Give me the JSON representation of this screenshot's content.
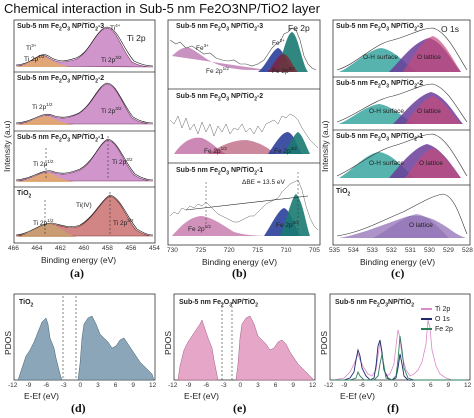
{
  "heading": "Chemical interaction in Sub-5 nm Fe2O3NP/TiO2 layer",
  "panels_top": [
    {
      "id": "a",
      "letter": "(a)",
      "core_level": "Ti 2p",
      "xlabel": "Binding energy (eV)",
      "ylabel": "Intensity (a.u)",
      "xticks": [
        "466",
        "464",
        "462",
        "460",
        "458",
        "456",
        "454"
      ],
      "samples": [
        {
          "label": "Sub-5 nm Fe2O3 NP/TiO2-3",
          "peaks": [
            "Ti3+",
            "Ti4+",
            "Ti 2p1/2",
            "Ti 2p3/2"
          ]
        },
        {
          "label": "Sub-5 nm Fe2O3 NP/TiO2-2",
          "peaks": [
            "Ti 2p1/2",
            "Ti 2p3/2"
          ]
        },
        {
          "label": "Sub-5 nm Fe2O3 NP/TiO2-1",
          "peaks": [
            "Ti 2p1/2",
            "Ti 2p3/2"
          ]
        },
        {
          "label": "TiO2",
          "peaks": [
            "Ti(IV)",
            "Ti 2p1/2",
            "Ti 2p3/2"
          ]
        }
      ]
    },
    {
      "id": "b",
      "letter": "(b)",
      "core_level": "Fe 2p",
      "xlabel": "Binding energy (eV)",
      "ylabel": "",
      "xticks": [
        "730",
        "725",
        "720",
        "715",
        "710",
        "705"
      ],
      "samples": [
        {
          "label": "Sub-5 nm Fe2O3 NP/TiO2-3",
          "peaks": [
            "Fe3+",
            "Fe2+",
            "Fe 2p1/2",
            "Fe 2p3/2"
          ]
        },
        {
          "label": "Sub-5 nm Fe2O3 NP/TiO2-2",
          "peaks": [
            "Fe 2p1/2",
            "Fe 2p3/2"
          ]
        },
        {
          "label": "Sub-5 nm Fe2O3 NP/TiO2-1",
          "peaks": [
            "ΔBE = 13.5 eV",
            "Fe 2p1/2",
            "Fe 2p3/2"
          ]
        }
      ]
    },
    {
      "id": "c",
      "letter": "(c)",
      "core_level": "O 1s",
      "xlabel": "Binding energy (eV)",
      "ylabel": "Intensity (a.u)",
      "xticks": [
        "535",
        "534",
        "533",
        "532",
        "531",
        "530",
        "529",
        "528"
      ],
      "samples": [
        {
          "label": "Sub-5 nm Fe2O3 NP/TiO2-3",
          "peaks": [
            "O-H surface",
            "O lattice"
          ]
        },
        {
          "label": "Sub-5 nm Fe2O3 NP/TiO2-2",
          "peaks": [
            "O-H surface",
            "O lattice"
          ]
        },
        {
          "label": "Sub-5 nm Fe2O3 NP/TiO2-1",
          "peaks": [
            "O-H surface",
            "O lattice"
          ]
        },
        {
          "label": "TiO2",
          "peaks": [
            "O lattice"
          ]
        }
      ]
    }
  ],
  "panels_bottom": [
    {
      "id": "d",
      "letter": "(d)",
      "label": "TiO2",
      "ylabel": "PDOS",
      "xlabel": "E-Ef (eV)",
      "xticks": [
        "-12",
        "-9",
        "-6",
        "-3",
        "0",
        "3",
        "6",
        "9",
        "12"
      ]
    },
    {
      "id": "e",
      "letter": "(e)",
      "label": "Sub-5 nm Fe2O3NP/TiO2",
      "ylabel": "PDOS",
      "xlabel": "E-Ef (eV)",
      "xticks": [
        "-12",
        "-9",
        "-6",
        "-3",
        "0",
        "3",
        "6",
        "9",
        "12"
      ]
    },
    {
      "id": "f",
      "letter": "(f)",
      "label": "Sub-5 nm Fe2O3NP/TiO2",
      "ylabel": "PDOS",
      "xlabel": "E-Ef (eV)",
      "xticks": [
        "-12",
        "-9",
        "-6",
        "-3",
        "0",
        "3",
        "6",
        "9",
        "12"
      ],
      "legend": [
        {
          "name": "Ti 2p",
          "color": "#d98ac8"
        },
        {
          "name": "O 1s",
          "color": "#1f2a6e"
        },
        {
          "name": "Fe 2p",
          "color": "#2e7d5b"
        }
      ]
    }
  ],
  "colors": {
    "ti_main": "#c071b8",
    "ti_secondary": "#e3a96a",
    "fe_purple": "#9b3a8e",
    "fe_blue": "#2a3f9a",
    "fe_teal": "#1a7a72",
    "o_teal": "#3aa6a0",
    "o_purple": "#6a3c9a",
    "dos_blue": "#8aa6b8",
    "dos_pink": "#e6a6c8"
  }
}
